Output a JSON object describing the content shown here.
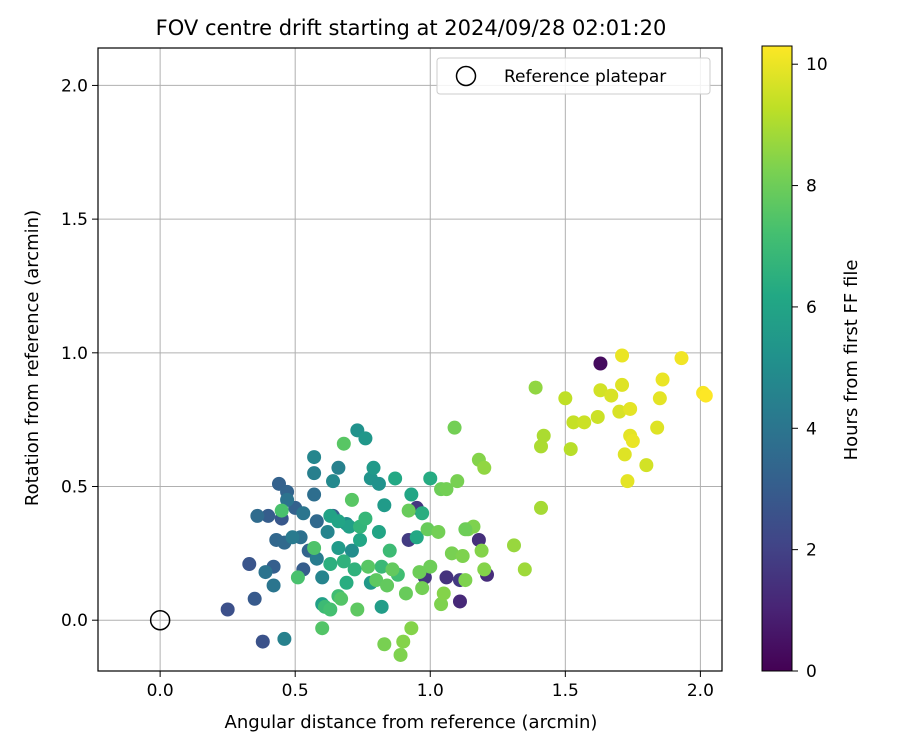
{
  "chart_data": {
    "type": "scatter",
    "title": "FOV centre drift starting at 2024/09/28 02:01:20",
    "xlabel": "Angular distance from reference (arcmin)",
    "ylabel": "Rotation from reference (arcmin)",
    "xlim": [
      -0.23,
      2.08
    ],
    "ylim": [
      -0.19,
      2.14
    ],
    "xticks": [
      0.0,
      0.5,
      1.0,
      1.5,
      2.0
    ],
    "yticks": [
      0.0,
      0.5,
      1.0,
      1.5,
      2.0
    ],
    "xtick_labels": [
      "0.0",
      "0.5",
      "1.0",
      "1.5",
      "2.0"
    ],
    "ytick_labels": [
      "0.0",
      "0.5",
      "1.0",
      "1.5",
      "2.0"
    ],
    "grid": true,
    "legend": {
      "placement": "top-right",
      "entries": [
        "Reference platepar"
      ]
    },
    "reference_point": {
      "x": 0.0,
      "y": 0.0,
      "label": "Reference platepar"
    },
    "colorbar": {
      "label": "Hours from first FF file",
      "colormap": "viridis",
      "range": [
        0,
        10.3
      ],
      "ticks": [
        0,
        2,
        4,
        6,
        8,
        10
      ],
      "tick_labels": [
        "0",
        "2",
        "4",
        "6",
        "8",
        "10"
      ]
    },
    "points": [
      {
        "x": 1.63,
        "y": 0.96,
        "c": 0.3
      },
      {
        "x": 1.11,
        "y": 0.07,
        "c": 1.2
      },
      {
        "x": 1.21,
        "y": 0.17,
        "c": 1.3
      },
      {
        "x": 1.18,
        "y": 0.3,
        "c": 1.4
      },
      {
        "x": 1.06,
        "y": 0.16,
        "c": 1.5
      },
      {
        "x": 0.98,
        "y": 0.16,
        "c": 1.6
      },
      {
        "x": 0.95,
        "y": 0.42,
        "c": 1.6
      },
      {
        "x": 1.11,
        "y": 0.15,
        "c": 1.7
      },
      {
        "x": 0.92,
        "y": 0.3,
        "c": 1.8
      },
      {
        "x": 0.25,
        "y": 0.04,
        "c": 2.5
      },
      {
        "x": 0.33,
        "y": 0.21,
        "c": 2.7
      },
      {
        "x": 0.38,
        "y": -0.08,
        "c": 2.6
      },
      {
        "x": 0.35,
        "y": 0.08,
        "c": 2.9
      },
      {
        "x": 0.45,
        "y": 0.38,
        "c": 2.8
      },
      {
        "x": 0.53,
        "y": 0.19,
        "c": 3.0
      },
      {
        "x": 0.42,
        "y": 0.2,
        "c": 3.1
      },
      {
        "x": 0.4,
        "y": 0.39,
        "c": 3.0
      },
      {
        "x": 0.44,
        "y": 0.51,
        "c": 3.2
      },
      {
        "x": 0.47,
        "y": 0.48,
        "c": 3.3
      },
      {
        "x": 0.5,
        "y": 0.42,
        "c": 3.2
      },
      {
        "x": 0.55,
        "y": 0.26,
        "c": 3.3
      },
      {
        "x": 0.43,
        "y": 0.3,
        "c": 3.4
      },
      {
        "x": 0.46,
        "y": 0.29,
        "c": 3.5
      },
      {
        "x": 0.58,
        "y": 0.37,
        "c": 3.5
      },
      {
        "x": 0.64,
        "y": 0.39,
        "c": 3.1
      },
      {
        "x": 0.57,
        "y": 0.47,
        "c": 3.7
      },
      {
        "x": 0.36,
        "y": 0.39,
        "c": 3.6
      },
      {
        "x": 0.39,
        "y": 0.18,
        "c": 3.9
      },
      {
        "x": 0.42,
        "y": 0.13,
        "c": 4.0
      },
      {
        "x": 0.52,
        "y": 0.31,
        "c": 3.8
      },
      {
        "x": 0.47,
        "y": 0.45,
        "c": 3.9
      },
      {
        "x": 0.53,
        "y": 0.4,
        "c": 4.0
      },
      {
        "x": 0.49,
        "y": 0.31,
        "c": 4.2
      },
      {
        "x": 0.57,
        "y": 0.55,
        "c": 4.4
      },
      {
        "x": 0.46,
        "y": -0.07,
        "c": 4.5
      },
      {
        "x": 0.58,
        "y": 0.23,
        "c": 4.3
      },
      {
        "x": 0.6,
        "y": 0.16,
        "c": 4.6
      },
      {
        "x": 0.66,
        "y": 0.57,
        "c": 4.5
      },
      {
        "x": 0.57,
        "y": 0.61,
        "c": 4.7
      },
      {
        "x": 0.64,
        "y": 0.52,
        "c": 4.8
      },
      {
        "x": 0.62,
        "y": 0.33,
        "c": 4.6
      },
      {
        "x": 0.69,
        "y": 0.36,
        "c": 5.0
      },
      {
        "x": 0.71,
        "y": 0.26,
        "c": 5.0
      },
      {
        "x": 0.73,
        "y": 0.71,
        "c": 5.2
      },
      {
        "x": 0.76,
        "y": 0.68,
        "c": 5.4
      },
      {
        "x": 0.78,
        "y": 0.53,
        "c": 5.3
      },
      {
        "x": 0.81,
        "y": 0.51,
        "c": 5.2
      },
      {
        "x": 0.79,
        "y": 0.57,
        "c": 5.5
      },
      {
        "x": 0.83,
        "y": 0.43,
        "c": 5.6
      },
      {
        "x": 0.78,
        "y": 0.14,
        "c": 5.5
      },
      {
        "x": 0.82,
        "y": 0.05,
        "c": 5.7
      },
      {
        "x": 0.6,
        "y": 0.06,
        "c": 5.8
      },
      {
        "x": 0.66,
        "y": 0.27,
        "c": 5.6
      },
      {
        "x": 0.63,
        "y": 0.39,
        "c": 5.9
      },
      {
        "x": 0.7,
        "y": 0.35,
        "c": 5.8
      },
      {
        "x": 0.66,
        "y": 0.37,
        "c": 6.0
      },
      {
        "x": 0.74,
        "y": 0.3,
        "c": 6.1
      },
      {
        "x": 0.81,
        "y": 0.33,
        "c": 6.0
      },
      {
        "x": 0.87,
        "y": 0.53,
        "c": 6.2
      },
      {
        "x": 0.93,
        "y": 0.47,
        "c": 6.1
      },
      {
        "x": 1.0,
        "y": 0.53,
        "c": 6.3
      },
      {
        "x": 0.97,
        "y": 0.4,
        "c": 6.4
      },
      {
        "x": 0.95,
        "y": 0.31,
        "c": 6.2
      },
      {
        "x": 0.69,
        "y": 0.14,
        "c": 6.4
      },
      {
        "x": 0.63,
        "y": 0.21,
        "c": 6.5
      },
      {
        "x": 0.68,
        "y": 0.22,
        "c": 6.6
      },
      {
        "x": 0.72,
        "y": 0.19,
        "c": 6.6
      },
      {
        "x": 0.74,
        "y": 0.35,
        "c": 6.7
      },
      {
        "x": 0.76,
        "y": 0.38,
        "c": 6.8
      },
      {
        "x": 0.82,
        "y": 0.2,
        "c": 6.9
      },
      {
        "x": 0.85,
        "y": 0.26,
        "c": 7.0
      },
      {
        "x": 0.88,
        "y": 0.17,
        "c": 7.1
      },
      {
        "x": 0.61,
        "y": 0.05,
        "c": 7.0
      },
      {
        "x": 0.63,
        "y": 0.04,
        "c": 7.2
      },
      {
        "x": 0.66,
        "y": 0.09,
        "c": 7.1
      },
      {
        "x": 0.45,
        "y": 0.41,
        "c": 7.3
      },
      {
        "x": 0.51,
        "y": 0.16,
        "c": 7.3
      },
      {
        "x": 0.57,
        "y": 0.27,
        "c": 7.4
      },
      {
        "x": 0.6,
        "y": -0.03,
        "c": 7.5
      },
      {
        "x": 0.67,
        "y": 0.08,
        "c": 7.5
      },
      {
        "x": 0.68,
        "y": 0.66,
        "c": 7.6
      },
      {
        "x": 0.71,
        "y": 0.45,
        "c": 7.6
      },
      {
        "x": 0.73,
        "y": 0.04,
        "c": 7.7
      },
      {
        "x": 0.77,
        "y": 0.2,
        "c": 7.6
      },
      {
        "x": 0.8,
        "y": 0.15,
        "c": 7.7
      },
      {
        "x": 0.84,
        "y": 0.13,
        "c": 7.8
      },
      {
        "x": 0.86,
        "y": 0.19,
        "c": 7.8
      },
      {
        "x": 0.91,
        "y": 0.1,
        "c": 7.9
      },
      {
        "x": 0.92,
        "y": 0.41,
        "c": 7.9
      },
      {
        "x": 0.96,
        "y": 0.18,
        "c": 8.0
      },
      {
        "x": 0.99,
        "y": 0.34,
        "c": 7.9
      },
      {
        "x": 1.0,
        "y": 0.2,
        "c": 8.0
      },
      {
        "x": 1.03,
        "y": 0.33,
        "c": 8.1
      },
      {
        "x": 1.04,
        "y": 0.49,
        "c": 8.0
      },
      {
        "x": 1.06,
        "y": 0.49,
        "c": 8.1
      },
      {
        "x": 1.08,
        "y": 0.25,
        "c": 8.2
      },
      {
        "x": 1.09,
        "y": 0.72,
        "c": 8.1
      },
      {
        "x": 1.1,
        "y": 0.52,
        "c": 8.2
      },
      {
        "x": 1.12,
        "y": 0.24,
        "c": 8.3
      },
      {
        "x": 1.13,
        "y": 0.15,
        "c": 8.3
      },
      {
        "x": 1.14,
        "y": 0.34,
        "c": 8.2
      },
      {
        "x": 1.16,
        "y": 0.35,
        "c": 8.3
      },
      {
        "x": 1.18,
        "y": 0.6,
        "c": 8.4
      },
      {
        "x": 1.19,
        "y": 0.26,
        "c": 8.4
      },
      {
        "x": 1.2,
        "y": 0.19,
        "c": 8.4
      },
      {
        "x": 0.83,
        "y": -0.09,
        "c": 8.2
      },
      {
        "x": 0.89,
        "y": -0.13,
        "c": 8.3
      },
      {
        "x": 0.9,
        "y": -0.08,
        "c": 8.4
      },
      {
        "x": 0.93,
        "y": -0.03,
        "c": 8.4
      },
      {
        "x": 0.97,
        "y": 0.12,
        "c": 8.1
      },
      {
        "x": 1.04,
        "y": 0.06,
        "c": 8.3
      },
      {
        "x": 1.05,
        "y": 0.1,
        "c": 8.4
      },
      {
        "x": 1.13,
        "y": 0.34,
        "c": 8.0
      },
      {
        "x": 1.2,
        "y": 0.57,
        "c": 8.6
      },
      {
        "x": 1.31,
        "y": 0.28,
        "c": 8.7
      },
      {
        "x": 1.35,
        "y": 0.19,
        "c": 8.8
      },
      {
        "x": 1.39,
        "y": 0.87,
        "c": 8.6
      },
      {
        "x": 1.41,
        "y": 0.42,
        "c": 8.9
      },
      {
        "x": 1.41,
        "y": 0.65,
        "c": 9.0
      },
      {
        "x": 1.42,
        "y": 0.69,
        "c": 9.0
      },
      {
        "x": 1.5,
        "y": 0.83,
        "c": 9.3
      },
      {
        "x": 1.52,
        "y": 0.64,
        "c": 9.2
      },
      {
        "x": 1.53,
        "y": 0.74,
        "c": 9.4
      },
      {
        "x": 1.57,
        "y": 0.74,
        "c": 9.5
      },
      {
        "x": 1.62,
        "y": 0.76,
        "c": 9.5
      },
      {
        "x": 1.63,
        "y": 0.86,
        "c": 9.6
      },
      {
        "x": 1.67,
        "y": 0.84,
        "c": 9.7
      },
      {
        "x": 1.7,
        "y": 0.78,
        "c": 9.7
      },
      {
        "x": 1.71,
        "y": 0.88,
        "c": 9.8
      },
      {
        "x": 1.72,
        "y": 0.62,
        "c": 9.8
      },
      {
        "x": 1.73,
        "y": 0.52,
        "c": 9.9
      },
      {
        "x": 1.74,
        "y": 0.69,
        "c": 9.9
      },
      {
        "x": 1.74,
        "y": 0.79,
        "c": 9.9
      },
      {
        "x": 1.75,
        "y": 0.67,
        "c": 10.0
      },
      {
        "x": 1.71,
        "y": 0.99,
        "c": 10.0
      },
      {
        "x": 1.8,
        "y": 0.58,
        "c": 9.6
      },
      {
        "x": 1.84,
        "y": 0.72,
        "c": 9.8
      },
      {
        "x": 1.85,
        "y": 0.83,
        "c": 9.9
      },
      {
        "x": 1.86,
        "y": 0.9,
        "c": 10.0
      },
      {
        "x": 1.93,
        "y": 0.98,
        "c": 10.1
      },
      {
        "x": 2.01,
        "y": 0.85,
        "c": 10.2
      },
      {
        "x": 2.02,
        "y": 0.84,
        "c": 10.3
      }
    ]
  }
}
